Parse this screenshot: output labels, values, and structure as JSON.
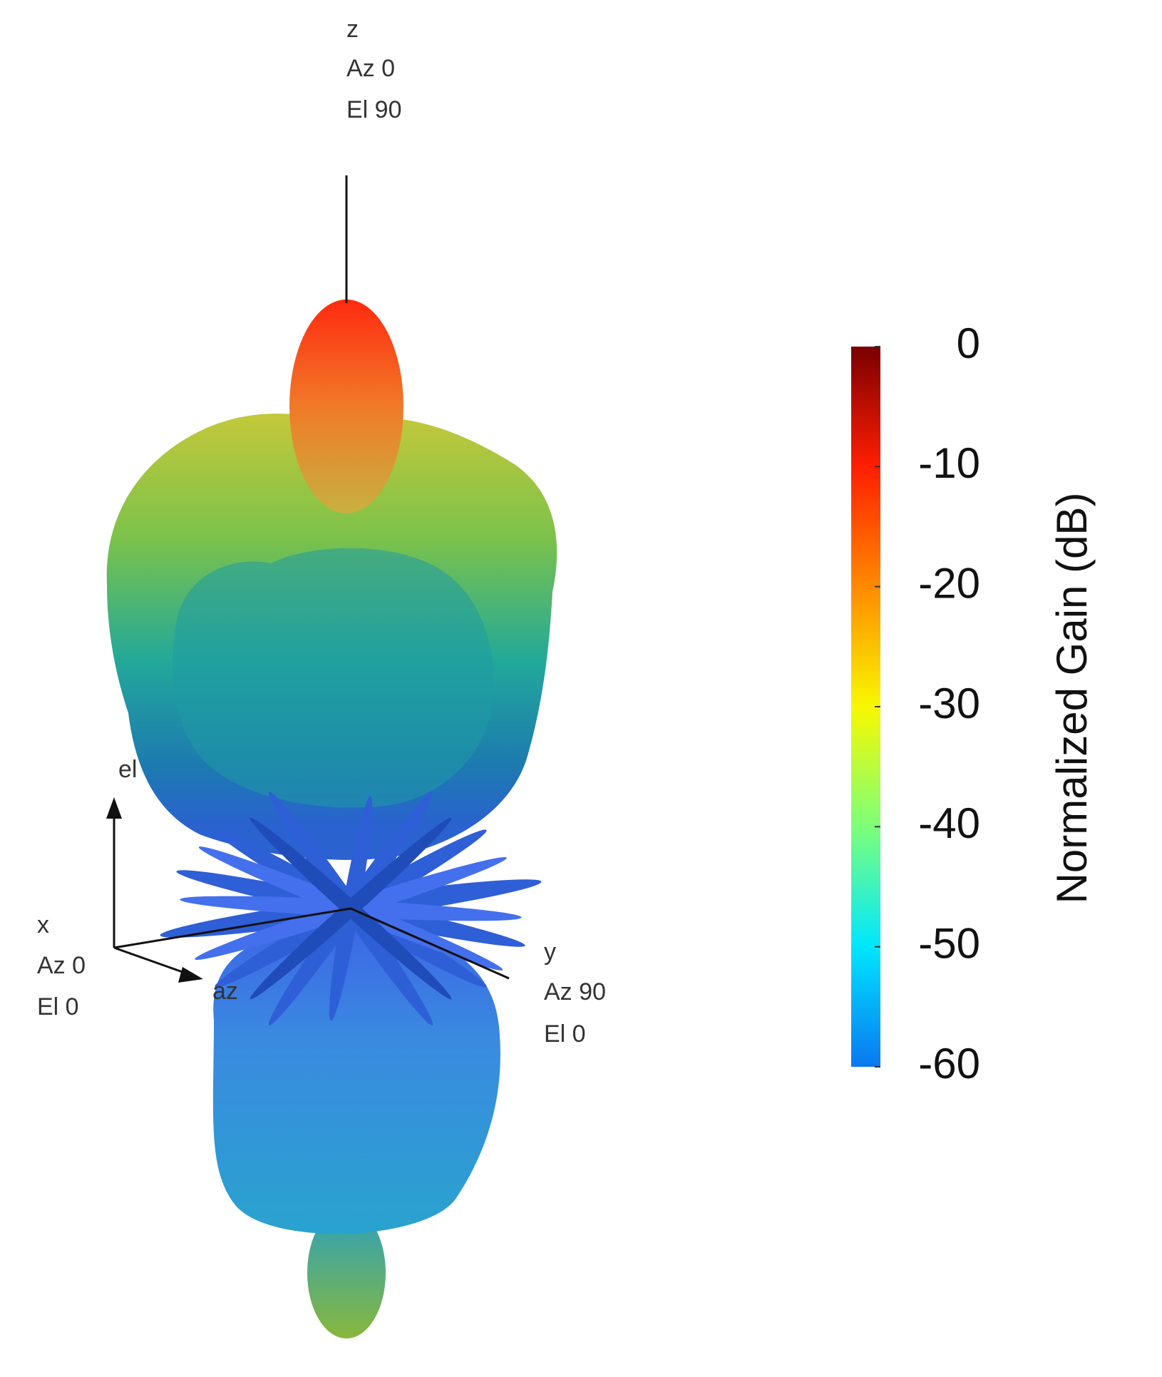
{
  "chart_data": {
    "type": "surface3d",
    "axis_labels": {
      "z": [
        "z",
        "Az 0",
        "El 90"
      ],
      "x": [
        "x",
        "Az 0",
        "El 0"
      ],
      "y": [
        "y",
        "Az 90",
        "El 0"
      ],
      "el": "el",
      "az": "az"
    },
    "colorbar": {
      "label": "Normalized Gain (dB)",
      "lim": [
        -60,
        0
      ],
      "ticks": [
        0,
        -10,
        -20,
        -30,
        -40,
        -50,
        -60
      ],
      "colormap": [
        "#0a78f0",
        "#00e6ff",
        "#7dff7a",
        "#f8f800",
        "#ff8a00",
        "#ff1e00",
        "#7a0000"
      ]
    }
  }
}
